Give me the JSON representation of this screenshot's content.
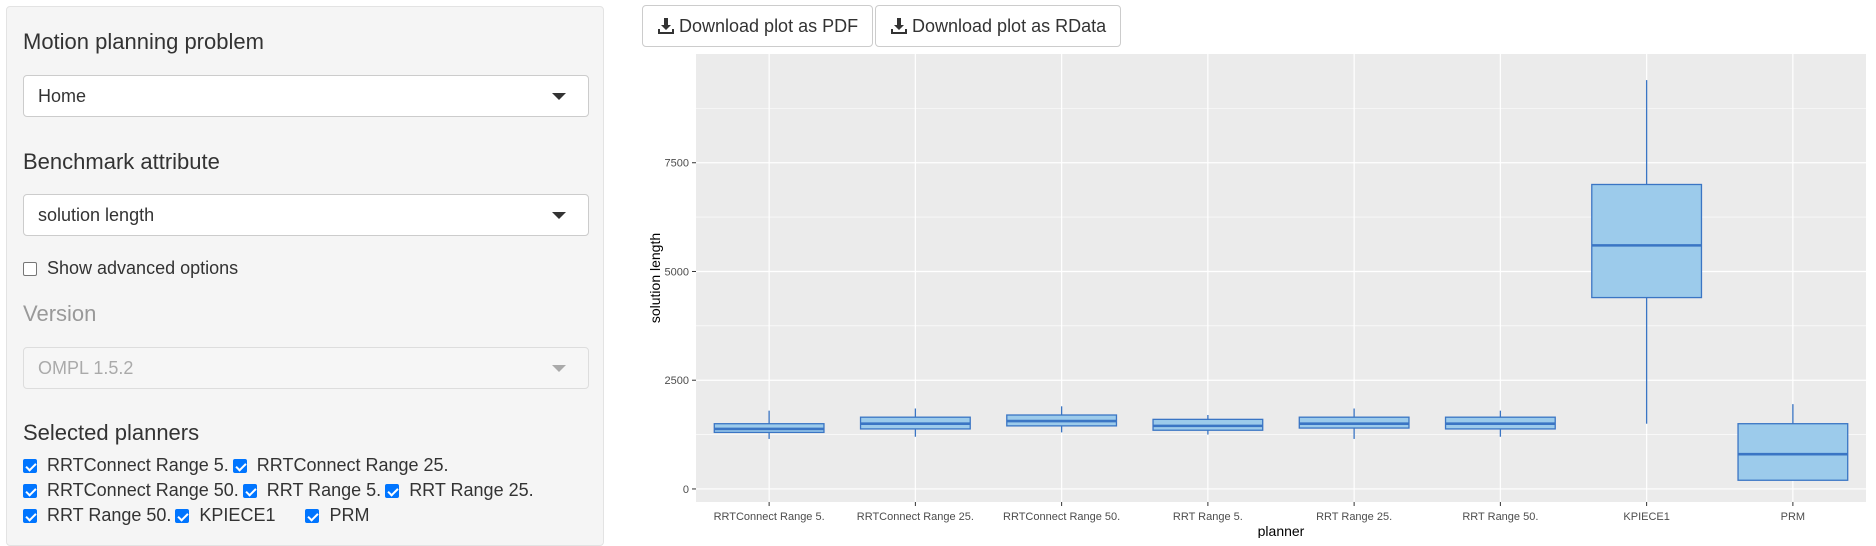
{
  "sidebar": {
    "problem_label": "Motion planning problem",
    "problem_value": "Home",
    "attribute_label": "Benchmark attribute",
    "attribute_value": "solution length",
    "advanced_label": "Show advanced options",
    "advanced_checked": false,
    "version_label": "Version",
    "version_value": "OMPL 1.5.2",
    "planners_label": "Selected planners",
    "planners": [
      {
        "label": "RRTConnect Range 5.",
        "checked": true
      },
      {
        "label": "RRTConnect Range 25.",
        "checked": true
      },
      {
        "label": "RRTConnect Range 50.",
        "checked": true
      },
      {
        "label": "RRT Range 5.",
        "checked": true
      },
      {
        "label": "RRT Range 25.",
        "checked": true
      },
      {
        "label": "RRT Range 50.",
        "checked": true
      },
      {
        "label": "KPIECE1",
        "checked": true
      },
      {
        "label": "PRM",
        "checked": true
      }
    ]
  },
  "toolbar": {
    "pdf_label": "Download plot as PDF",
    "rdata_label": "Download plot as RData",
    "icon": "download-icon"
  },
  "colors": {
    "panel_bg": "#ebebeb",
    "box_fill": "#9ccbeb",
    "box_stroke": "#3a75c4",
    "grid": "#ffffff"
  },
  "chart_data": {
    "type": "boxplot",
    "xlabel": "planner",
    "ylabel": "solution length",
    "ylim": [
      -300,
      10000
    ],
    "yticks": [
      0,
      2500,
      5000,
      7500
    ],
    "ytick_labels": [
      "0",
      "2500",
      "5000",
      "7500"
    ],
    "grid": true,
    "categories": [
      "RRTConnect Range 5.",
      "RRTConnect Range 25.",
      "RRTConnect Range 50.",
      "RRT Range 5.",
      "RRT Range 25.",
      "RRT Range 50.",
      "KPIECE1",
      "PRM"
    ],
    "boxes": [
      {
        "min": 1150,
        "q1": 1300,
        "median": 1380,
        "q3": 1500,
        "max": 1800
      },
      {
        "min": 1200,
        "q1": 1380,
        "median": 1500,
        "q3": 1650,
        "max": 1850
      },
      {
        "min": 1300,
        "q1": 1450,
        "median": 1560,
        "q3": 1700,
        "max": 1900
      },
      {
        "min": 1250,
        "q1": 1350,
        "median": 1450,
        "q3": 1600,
        "max": 1700
      },
      {
        "min": 1150,
        "q1": 1400,
        "median": 1500,
        "q3": 1650,
        "max": 1850
      },
      {
        "min": 1200,
        "q1": 1380,
        "median": 1500,
        "q3": 1650,
        "max": 1800
      },
      {
        "min": 1500,
        "q1": 4400,
        "median": 5600,
        "q3": 7000,
        "max": 9400
      },
      {
        "min": 200,
        "q1": 200,
        "median": 800,
        "q3": 1500,
        "max": 1950
      }
    ]
  }
}
